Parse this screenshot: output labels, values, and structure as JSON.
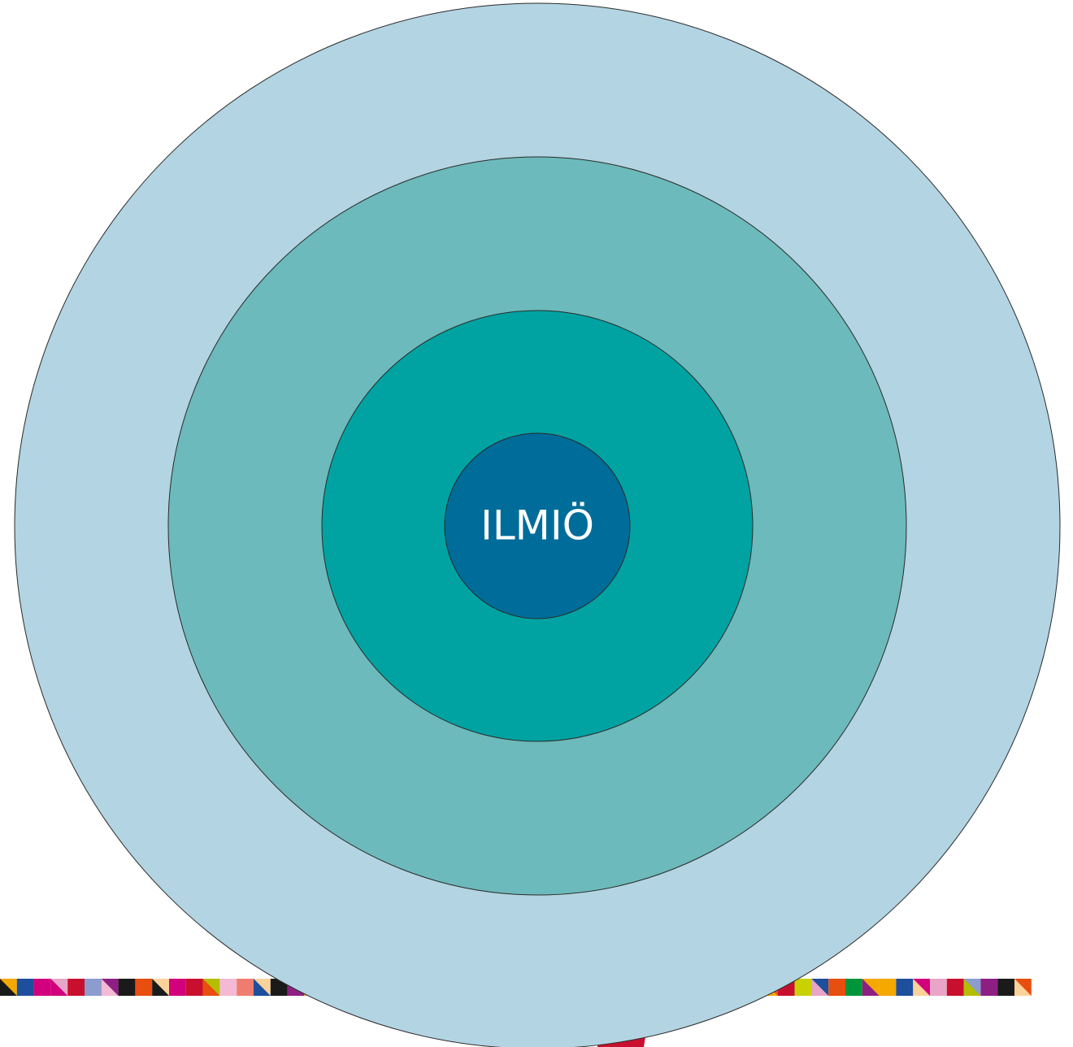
{
  "center": {
    "label": "ILMIÖ"
  }
}
